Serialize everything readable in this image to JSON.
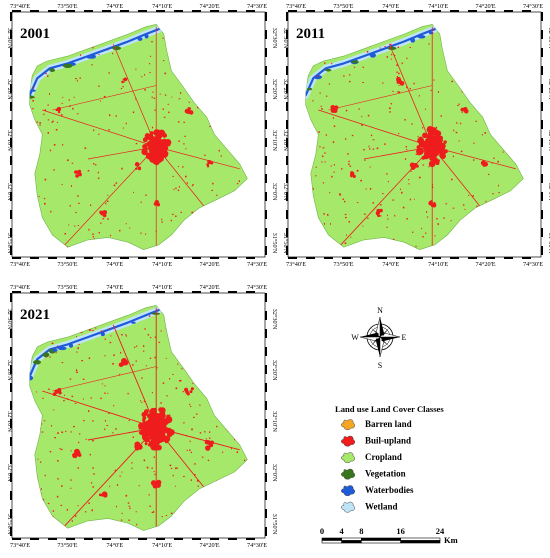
{
  "panels": [
    {
      "year": "2001",
      "lon_labels": [
        "73°40'E",
        "73°50'E",
        "74°0'E",
        "74°10'E",
        "74°20'E",
        "74°30'E"
      ],
      "lat_labels": [
        "32°30'N",
        "32°20'N",
        "32°10'N",
        "32°0'N",
        "31°50'N"
      ],
      "urban_level": 1.0
    },
    {
      "year": "2011",
      "lon_labels": [
        "73°40'E",
        "73°50'E",
        "74°0'E",
        "74°10'E",
        "74°20'E",
        "74°30'E"
      ],
      "lat_labels": [
        "32°30'N",
        "32°20'N",
        "32°10'N",
        "32°0'N",
        "31°50'N"
      ],
      "urban_level": 1.12
    },
    {
      "year": "2021",
      "lon_labels": [
        "73°40'E",
        "73°50'E",
        "74°0'E",
        "74°10'E",
        "74°20'E",
        "74°30'E"
      ],
      "lat_labels": [
        "32°30'N",
        "32°20'N",
        "32°10'N",
        "32°0'N",
        "31°50'N"
      ],
      "urban_level": 1.3
    }
  ],
  "compass": {
    "n": "N",
    "s": "S",
    "e": "E",
    "w": "W"
  },
  "legend": {
    "title": "Land use Land Cover Classes",
    "items": [
      {
        "label": "Barren land",
        "color": "#f5a623"
      },
      {
        "label": "Buil-upland",
        "color": "#ee1c1c"
      },
      {
        "label": "Cropland",
        "color": "#a6e86a"
      },
      {
        "label": "Vegetation",
        "color": "#38761d"
      },
      {
        "label": "Waterbodies",
        "color": "#1f5bd8"
      },
      {
        "label": "Wetland",
        "color": "#bfe3f7"
      }
    ]
  },
  "scale_bar": {
    "ticks": [
      "0",
      "4",
      "8",
      "16",
      "24"
    ],
    "unit": "Km"
  }
}
